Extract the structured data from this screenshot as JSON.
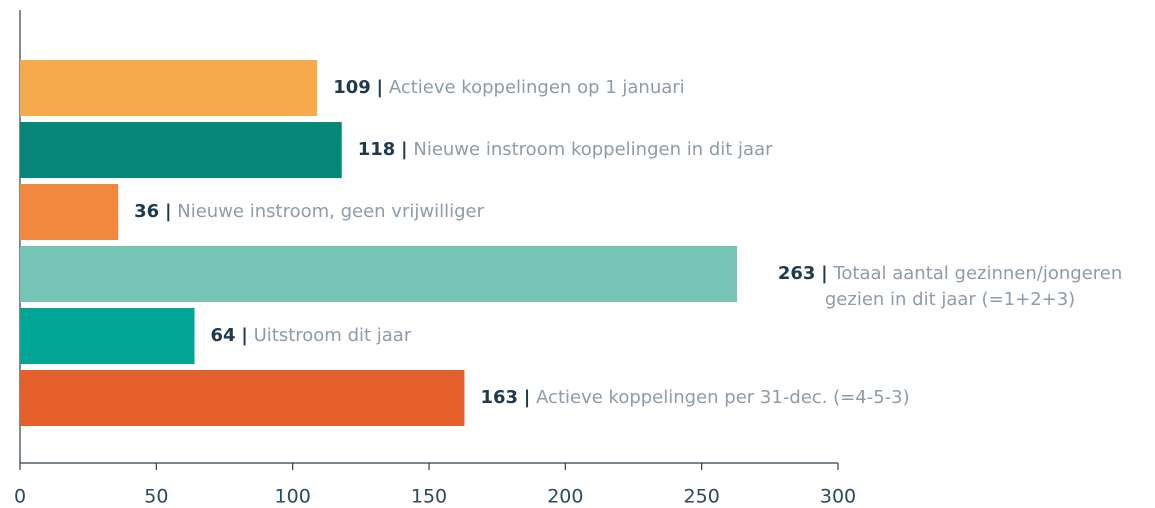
{
  "chart_data": {
    "type": "barh",
    "categories": [
      "Actieve koppelingen op 1 januari",
      "Nieuwe instroom koppelingen in dit jaar",
      "Nieuwe instroom, geen vrijwilliger",
      "Totaal aantal gezinnen/jongeren gezien in dit jaar (=1+2+3)",
      "Uitstroom dit jaar",
      "Actieve koppelingen per 31-dec. (=4-5-3)"
    ],
    "values": [
      109,
      118,
      36,
      263,
      64,
      163
    ],
    "colors": [
      "#f5ab4b",
      "#07877a",
      "#f0883e",
      "#76c4b6",
      "#00a596",
      "#e55f2b"
    ],
    "separator": "|",
    "xlim": [
      0,
      300
    ],
    "xticks": [
      0,
      50,
      100,
      150,
      200,
      250,
      300
    ]
  }
}
